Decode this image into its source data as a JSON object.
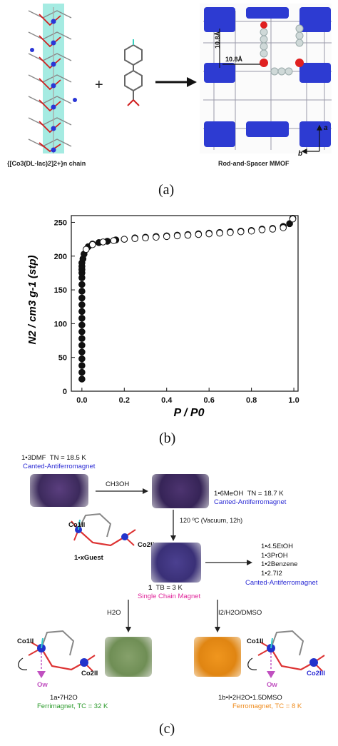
{
  "panel_a": {
    "chain_label": "{[Co3(DL-lac)2]2+}n chain",
    "plus": "+",
    "mof_label": "Rod-and-Spacer MMOF",
    "dim1": "10.8Å",
    "dim2": "10.8Å",
    "axis_a": "a",
    "axis_b": "b",
    "letter": "(a)"
  },
  "panel_b": {
    "letter": "(b)",
    "chart_data": {
      "type": "scatter",
      "xlabel": "P / P0",
      "ylabel": "N2 / cm3 g-1 (stp)",
      "xlim": [
        -0.05,
        1.02
      ],
      "ylim": [
        0,
        260
      ],
      "xticks": [
        "0.0",
        "0.2",
        "0.4",
        "0.6",
        "0.8",
        "1.0"
      ],
      "yticks": [
        "0",
        "50",
        "100",
        "150",
        "200",
        "250"
      ],
      "grid": false,
      "series": [
        {
          "marker": "filled",
          "x": [
            0.0,
            0.0,
            0.0,
            0.0,
            0.0,
            0.0,
            0.0,
            0.0,
            0.0,
            0.0,
            0.0,
            0.0,
            0.0,
            0.0,
            0.0,
            0.0,
            0.0,
            0.0,
            0.0,
            0.0,
            0.005,
            0.01,
            0.03,
            0.05,
            0.08,
            0.12,
            0.16,
            0.2,
            0.25,
            0.3,
            0.35,
            0.4,
            0.45,
            0.5,
            0.55,
            0.6,
            0.65,
            0.7,
            0.75,
            0.8,
            0.85,
            0.9,
            0.95,
            0.98,
            0.995
          ],
          "y": [
            18,
            28,
            38,
            48,
            58,
            68,
            78,
            88,
            98,
            108,
            118,
            128,
            138,
            148,
            158,
            168,
            175,
            180,
            185,
            190,
            196,
            203,
            214,
            218,
            220,
            222,
            224,
            225,
            227,
            228,
            229,
            230,
            231,
            232,
            233,
            234,
            235,
            236,
            237,
            238,
            240,
            241,
            244,
            248,
            256
          ]
        },
        {
          "marker": "open",
          "x": [
            0.02,
            0.05,
            0.1,
            0.15,
            0.2,
            0.25,
            0.3,
            0.35,
            0.4,
            0.45,
            0.5,
            0.55,
            0.6,
            0.65,
            0.7,
            0.75,
            0.8,
            0.85,
            0.9,
            0.95,
            0.995
          ],
          "y": [
            210,
            217,
            221,
            223,
            225,
            226,
            227,
            228,
            229,
            230,
            231,
            232,
            233,
            234,
            235,
            236,
            237,
            239,
            240,
            242,
            255
          ]
        }
      ]
    }
  },
  "panel_c": {
    "letter": "(c)",
    "c1_name": "1•3DMF",
    "c1_tn": "TN = 18.5 K",
    "c1_type": "Canted-Antiferromagnet",
    "arrow1": "CH3OH",
    "c2_name": "1•6MeOH",
    "c2_tn": "TN = 18.7 K",
    "c2_type": "Canted-Antiferromagnet",
    "arrow2": "120 ºC (Vacuum, 12h)",
    "co1": "Co1II",
    "co2": "Co2II",
    "guest": "1•xGuest",
    "c3_name": "1",
    "c3_tb": "TB = 3 K",
    "c3_type": "Single Chain Magnet",
    "list": [
      "1•4.5EtOH",
      "1•3PrOH",
      "1•2Benzene",
      "1•2.7I2"
    ],
    "list_type": "Canted-Antiferromagnet",
    "arrow_h2o": "H2O",
    "arrow_dmso": "I2/H2O/DMSO",
    "left_co1": "Co1II",
    "left_co2": "Co2II",
    "left_ow": "Ow",
    "left_name": "1a•7H2O",
    "left_type": "Ferrimagnet, TC = 32 K",
    "right_co1": "Co1II",
    "right_co2": "Co2III",
    "right_ow": "Ow",
    "right_name": "1b•I•2H2O•1.5DMSO",
    "right_type": "Ferromagnet, TC = 8 K"
  }
}
